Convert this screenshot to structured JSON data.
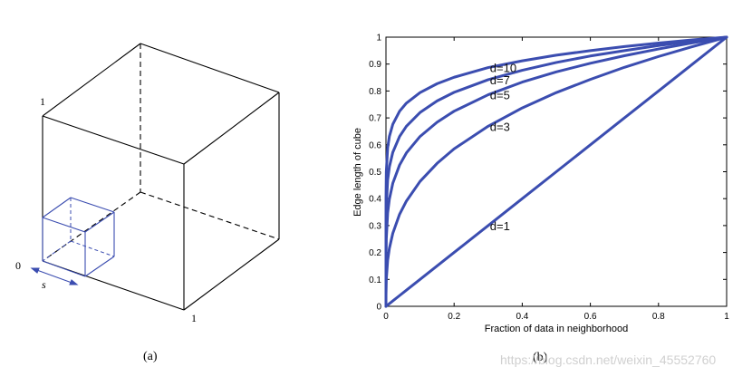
{
  "panel_a": {
    "caption": "(a)",
    "label_top": "1",
    "label_bottom_right": "1",
    "label_origin": "0",
    "label_s": "s",
    "accent_color": "#3b4db0"
  },
  "panel_b": {
    "caption": "(b)",
    "watermark": "https://blog.csdn.net/weixin_45552760"
  },
  "chart_data": {
    "type": "line",
    "title": "",
    "xlabel": "Fraction of data in neighborhood",
    "ylabel": "Edge length of cube",
    "xlim": [
      0,
      1
    ],
    "ylim": [
      0,
      1
    ],
    "xticks": [
      "0",
      "0.2",
      "0.4",
      "0.6",
      "0.8",
      "1"
    ],
    "yticks": [
      "0",
      "0.1",
      "0.2",
      "0.3",
      "0.4",
      "0.5",
      "0.6",
      "0.7",
      "0.8",
      "0.9",
      "1"
    ],
    "x": [
      0,
      0.0001,
      0.001,
      0.005,
      0.01,
      0.02,
      0.04,
      0.06,
      0.1,
      0.15,
      0.2,
      0.3,
      0.4,
      0.5,
      0.6,
      0.7,
      0.8,
      0.9,
      1.0
    ],
    "series": [
      {
        "name": "d=1",
        "values": [
          0,
          0.0001,
          0.001,
          0.005,
          0.01,
          0.02,
          0.04,
          0.06,
          0.1,
          0.15,
          0.2,
          0.3,
          0.4,
          0.5,
          0.6,
          0.7,
          0.8,
          0.9,
          1.0
        ]
      },
      {
        "name": "d=3",
        "values": [
          0,
          0.046,
          0.1,
          0.171,
          0.215,
          0.271,
          0.342,
          0.391,
          0.464,
          0.531,
          0.585,
          0.669,
          0.737,
          0.794,
          0.843,
          0.888,
          0.928,
          0.965,
          1.0
        ]
      },
      {
        "name": "d=5",
        "values": [
          0,
          0.158,
          0.251,
          0.347,
          0.398,
          0.457,
          0.525,
          0.57,
          0.631,
          0.684,
          0.725,
          0.786,
          0.833,
          0.871,
          0.903,
          0.931,
          0.956,
          0.979,
          1.0
        ]
      },
      {
        "name": "d=7",
        "values": [
          0,
          0.268,
          0.373,
          0.469,
          0.518,
          0.572,
          0.631,
          0.669,
          0.72,
          0.763,
          0.795,
          0.842,
          0.877,
          0.906,
          0.93,
          0.95,
          0.969,
          0.985,
          1.0
        ]
      },
      {
        "name": "d=10",
        "values": [
          0,
          0.398,
          0.501,
          0.589,
          0.631,
          0.676,
          0.725,
          0.755,
          0.794,
          0.827,
          0.851,
          0.887,
          0.912,
          0.933,
          0.95,
          0.965,
          0.978,
          0.99,
          1.0
        ]
      }
    ],
    "series_labels": [
      {
        "text": "d=10",
        "x": 0.3,
        "y": 0.887
      },
      {
        "text": "d=7",
        "x": 0.3,
        "y": 0.842
      },
      {
        "text": "d=5",
        "x": 0.3,
        "y": 0.786
      },
      {
        "text": "d=3",
        "x": 0.3,
        "y": 0.669
      },
      {
        "text": "d=1",
        "x": 0.3,
        "y": 0.3
      }
    ],
    "line_color": "#3b4db0",
    "grid": false,
    "legend": "none"
  }
}
